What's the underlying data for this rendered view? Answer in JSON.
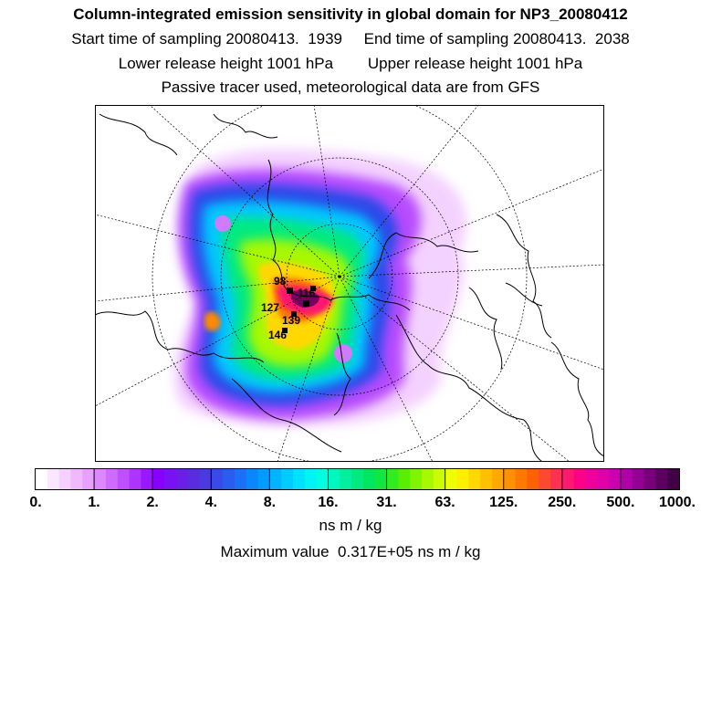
{
  "chart_data": {
    "type": "heatmap",
    "title": "Column-integrated emission sensitivity in global domain for NP3_20080412",
    "subtitle_lines": {
      "start": "Start time of sampling 20080413.  1939",
      "end": "End time of sampling 20080413.  2038",
      "lower": "Lower release height 1001 hPa",
      "upper": "Upper release height 1001 hPa",
      "note": "Passive tracer used, meteorological data are from GFS"
    },
    "colorbar": {
      "tick_labels": [
        "0.",
        "1.",
        "2.",
        "4.",
        "8.",
        "16.",
        "31.",
        "63.",
        "125.",
        "250.",
        "500.",
        "1000."
      ],
      "tick_values": [
        0,
        1,
        2,
        4,
        8,
        16,
        31,
        63,
        125,
        250,
        500,
        1000
      ],
      "unit": "ns m / kg",
      "colors": [
        "#ffffff",
        "#fbe6ff",
        "#f6d0ff",
        "#f0b8ff",
        "#e8a0ff",
        "#dd88ff",
        "#cf6cff",
        "#c050ff",
        "#ae34ff",
        "#9a18ff",
        "#8800ff",
        "#7a10f4",
        "#6a1ee8",
        "#5a2ce0",
        "#4a3ae0",
        "#3a4ae8",
        "#2a5cf0",
        "#1a70f8",
        "#0a86ff",
        "#009cff",
        "#00b4ff",
        "#00ccff",
        "#00e0ff",
        "#00f4f4",
        "#00ffe0",
        "#00f8c0",
        "#00f0a0",
        "#00ea80",
        "#00e660",
        "#10e840",
        "#30ec20",
        "#58f000",
        "#80f400",
        "#a8f800",
        "#ccfc00",
        "#eeff00",
        "#ffee00",
        "#ffd800",
        "#ffc000",
        "#ffa800",
        "#ff9000",
        "#ff7800",
        "#ff6000",
        "#ff4830",
        "#ff3050",
        "#ff1870",
        "#ff0088",
        "#f0009a",
        "#e000a8",
        "#cc00b0",
        "#b000a8",
        "#940094",
        "#78007c",
        "#5c0060",
        "#420046"
      ]
    },
    "max_value": 31700,
    "max_value_text": "Maximum value  0.317E+05 ns m / kg",
    "plume_labels": [
      "98",
      "116",
      "127",
      "139",
      "146"
    ]
  }
}
